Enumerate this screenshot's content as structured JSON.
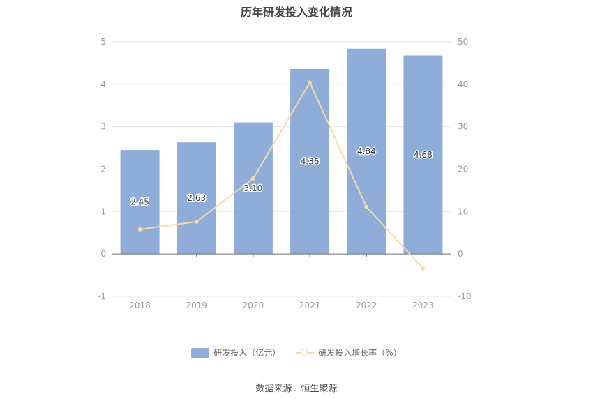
{
  "chart_data": {
    "type": "bar",
    "title": "历年研发投入变化情况",
    "categories": [
      "2018",
      "2019",
      "2020",
      "2021",
      "2022",
      "2023"
    ],
    "series": [
      {
        "name": "研发投入（亿元）",
        "type": "bar",
        "axis": "left",
        "values": [
          2.45,
          2.63,
          3.1,
          4.36,
          4.84,
          4.68
        ],
        "labels": [
          "2.45",
          "2.63",
          "3.10",
          "4.36",
          "4.84",
          "4.68"
        ]
      },
      {
        "name": "研发投入增长率（%）",
        "type": "line",
        "axis": "right",
        "values": [
          5.8,
          7.6,
          17.8,
          40.4,
          11.1,
          -3.4
        ]
      }
    ],
    "y_left": {
      "min": -1,
      "max": 5,
      "ticks": [
        5,
        4,
        3,
        2,
        1,
        0,
        -1
      ]
    },
    "y_right": {
      "min": -10,
      "max": 50,
      "ticks": [
        50,
        40,
        30,
        20,
        10,
        0,
        -10
      ]
    },
    "grid": true,
    "legend_position": "bottom",
    "colors": {
      "bar": "#8eadd9",
      "line": "#f6dba6"
    },
    "source": "数据来源：恒生聚源"
  }
}
